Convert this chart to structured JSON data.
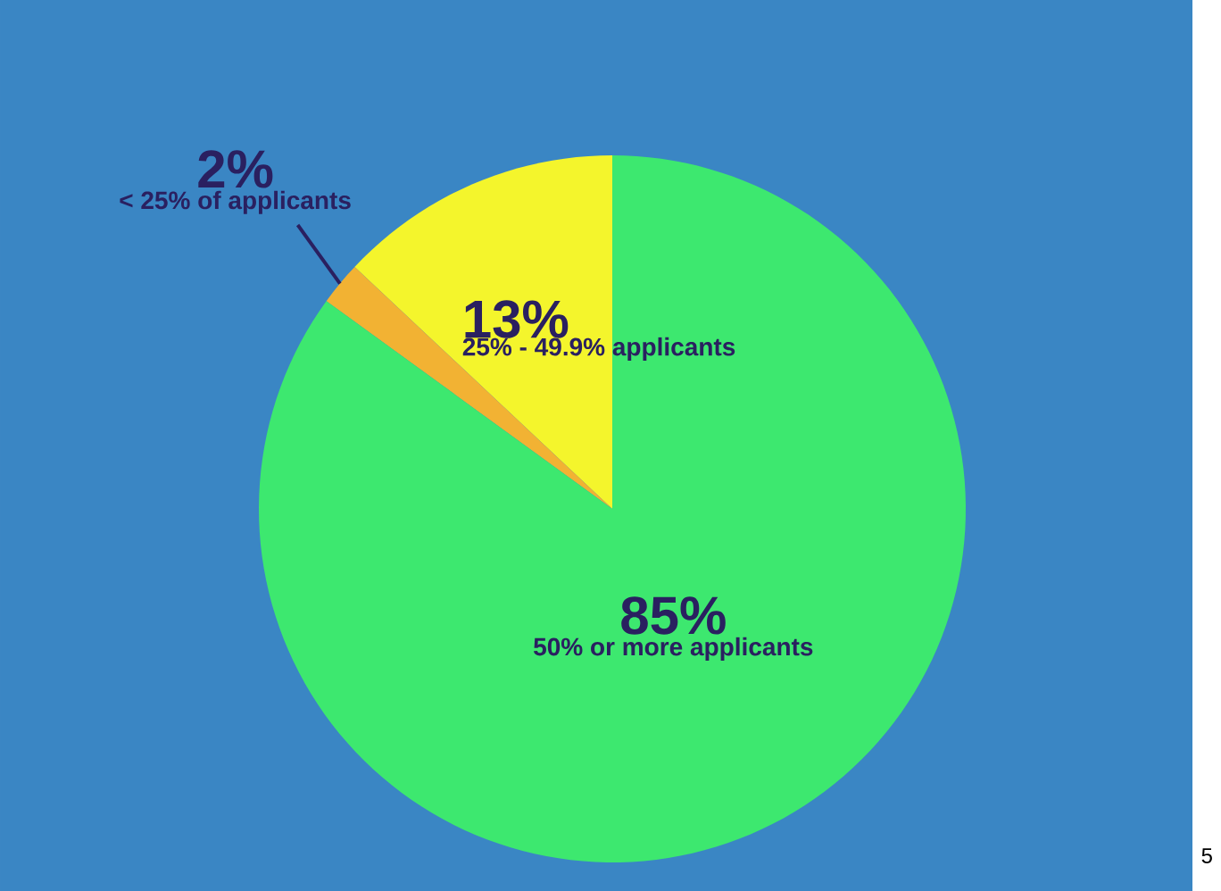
{
  "chart_data": {
    "type": "pie",
    "categories": [
      "25% - 49.9% applicants",
      "< 25% of applicants",
      "50% or more applicants"
    ],
    "values": [
      13,
      2,
      85
    ],
    "colors": [
      "#f4f52c",
      "#f2b233",
      "#3de86f"
    ],
    "value_labels": [
      "13%",
      "2%",
      "85%"
    ],
    "annotations": [
      "5"
    ]
  }
}
